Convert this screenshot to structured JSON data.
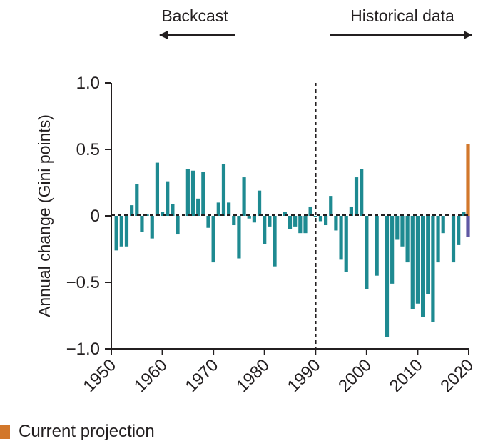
{
  "chart_data": {
    "type": "bar",
    "title": "",
    "xlabel": "",
    "ylabel": "Annual change (Gini points)",
    "xlim": [
      1950,
      2020
    ],
    "ylim": [
      -1.0,
      1.0
    ],
    "x_ticks": [
      1950,
      1960,
      1970,
      1980,
      1990,
      2000,
      2010,
      2020
    ],
    "y_ticks": [
      {
        "value": 1.0,
        "label": "1.0"
      },
      {
        "value": 0.5,
        "label": "0.5"
      },
      {
        "value": 0,
        "label": "0"
      },
      {
        "value": -0.5,
        "label": "−0.5"
      },
      {
        "value": -1.0,
        "label": "−1.0"
      }
    ],
    "divider_x": 1990,
    "regions": {
      "left_label": "Backcast",
      "right_label": "Historical data"
    },
    "colors": {
      "series": "#1e8a91",
      "projection_positive": "#d2772b",
      "projection_negative": "#5e58a3",
      "axis": "#231f20"
    },
    "series": [
      {
        "x": [
          1951,
          1952,
          1953,
          1954,
          1955,
          1956,
          1957,
          1958,
          1959,
          1960,
          1961,
          1962,
          1963,
          1964,
          1965,
          1966,
          1967,
          1968,
          1969,
          1970,
          1971,
          1972,
          1973,
          1974,
          1975,
          1976,
          1977,
          1978,
          1979,
          1980,
          1981,
          1982,
          1983,
          1984,
          1985,
          1986,
          1987,
          1988,
          1989,
          1990,
          1991,
          1992,
          1993,
          1994,
          1995,
          1996,
          1997,
          1998,
          1999,
          2000,
          2001,
          2002,
          2003,
          2004,
          2005,
          2006,
          2007,
          2008,
          2009,
          2010,
          2011,
          2012,
          2013,
          2014,
          2015,
          2016,
          2017,
          2018,
          2019
        ],
        "values": [
          -0.26,
          -0.23,
          -0.23,
          0.08,
          0.24,
          -0.12,
          0.01,
          -0.17,
          0.4,
          0.03,
          0.26,
          0.09,
          -0.14,
          0.0,
          0.35,
          0.34,
          0.13,
          0.33,
          -0.09,
          -0.35,
          0.1,
          0.39,
          0.1,
          -0.07,
          -0.32,
          0.29,
          -0.02,
          -0.05,
          0.19,
          -0.21,
          -0.08,
          -0.38,
          0.0,
          0.03,
          -0.1,
          -0.08,
          -0.13,
          -0.13,
          0.07,
          -0.01,
          -0.04,
          -0.07,
          0.15,
          -0.11,
          -0.33,
          -0.42,
          0.07,
          0.29,
          0.35,
          -0.55,
          0.0,
          -0.45,
          0.0,
          -0.91,
          -0.51,
          -0.18,
          -0.23,
          -0.35,
          -0.7,
          -0.66,
          -0.76,
          -0.59,
          -0.8,
          -0.35,
          -0.13,
          0.0,
          -0.35,
          -0.22,
          0.03
        ]
      }
    ],
    "projection": {
      "x": 2020,
      "high": 0.54,
      "low": -0.16
    },
    "legend": {
      "position": "bottom-left",
      "items": [
        {
          "label": "Current projection",
          "color": "#d2772b"
        }
      ]
    }
  }
}
